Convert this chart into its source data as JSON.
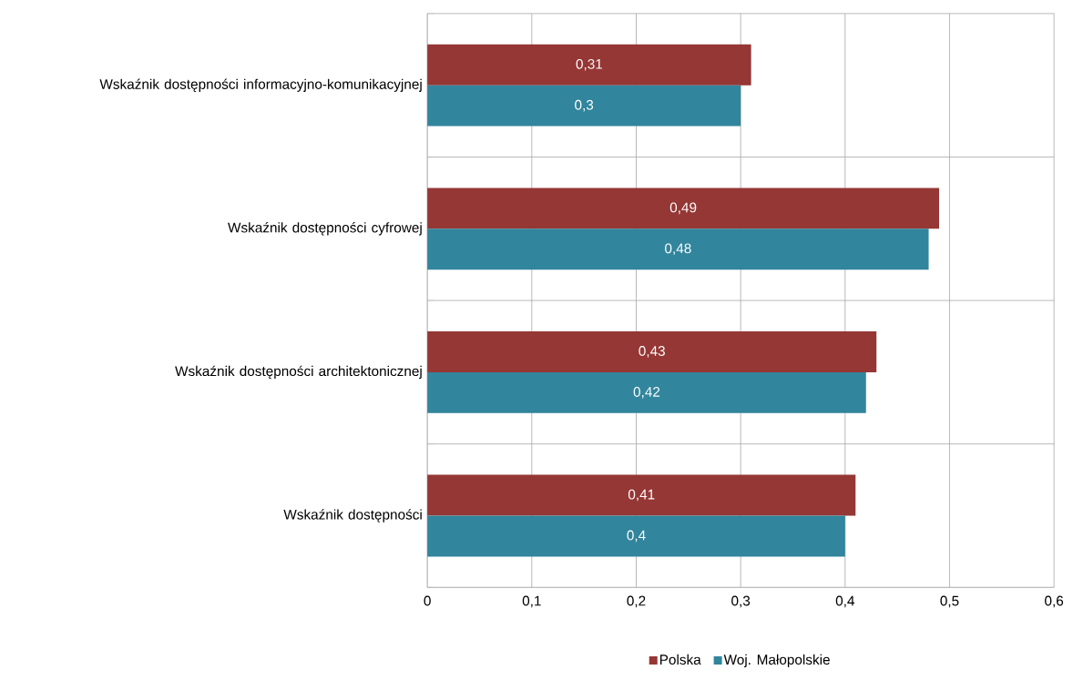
{
  "chart_data": {
    "type": "bar",
    "orientation": "horizontal",
    "categories": [
      "Wskaźnik dostępności informacyjno-komunikacyjnej",
      "Wskaźnik dostępności cyfrowej",
      "Wskaźnik dostępności architektonicznej",
      "Wskaźnik dostępności"
    ],
    "series": [
      {
        "name": "Polska",
        "color": "#953735",
        "values": [
          0.31,
          0.49,
          0.43,
          0.41
        ],
        "value_labels": [
          "0,31",
          "0,49",
          "0,43",
          "0,41"
        ]
      },
      {
        "name": "Woj. Małopolskie",
        "color": "#31859c",
        "values": [
          0.3,
          0.48,
          0.42,
          0.4
        ],
        "value_labels": [
          "0,3",
          "0,48",
          "0,42",
          "0,4"
        ]
      }
    ],
    "xlim": [
      0,
      0.6
    ],
    "xticks": [
      0,
      {
        "value": 0.1,
        "label": "0,1"
      },
      {
        "value": 0.2,
        "label": "0,2"
      },
      {
        "value": 0.3,
        "label": "0,3"
      },
      {
        "value": 0.4,
        "label": "0,4"
      },
      {
        "value": 0.5,
        "label": "0,5"
      },
      {
        "value": 0.6,
        "label": "0,6"
      }
    ],
    "grid": true,
    "legend": "bottom"
  }
}
